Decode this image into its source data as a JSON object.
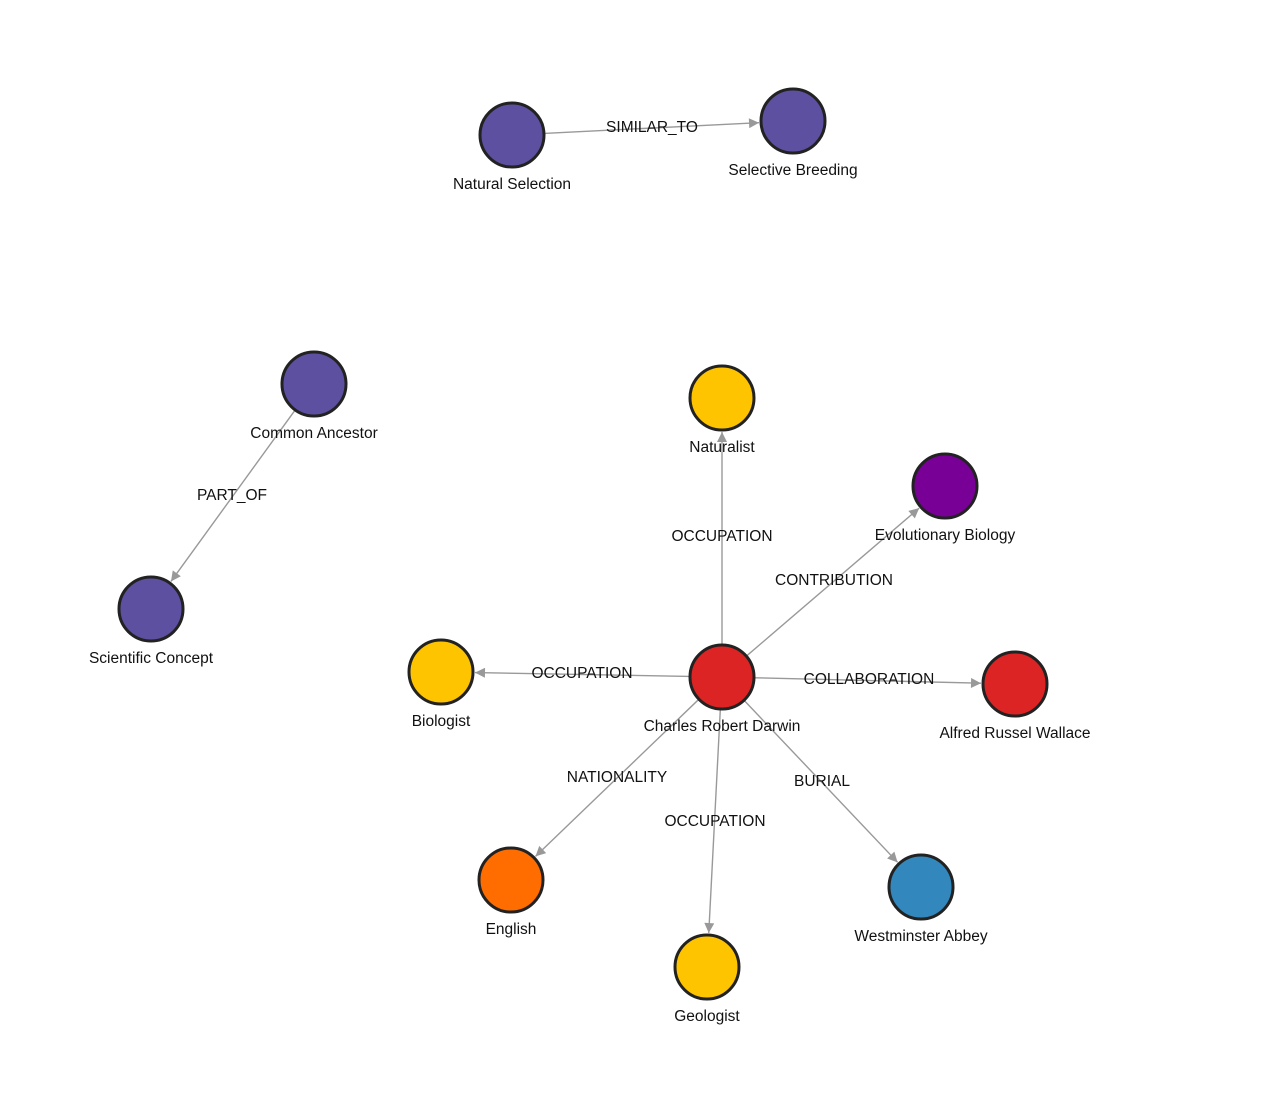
{
  "graph": {
    "nodes": [
      {
        "id": "natural_selection",
        "label": "Natural Selection",
        "color": "#5e50a1"
      },
      {
        "id": "selective_breeding",
        "label": "Selective Breeding",
        "color": "#5e50a1"
      },
      {
        "id": "common_ancestor",
        "label": "Common Ancestor",
        "color": "#5e50a1"
      },
      {
        "id": "scientific_concept",
        "label": "Scientific Concept",
        "color": "#5e50a1"
      },
      {
        "id": "naturalist",
        "label": "Naturalist",
        "color": "#ffc400"
      },
      {
        "id": "evolutionary_biology",
        "label": "Evolutionary Biology",
        "color": "#780096"
      },
      {
        "id": "biologist",
        "label": "Biologist",
        "color": "#ffc400"
      },
      {
        "id": "darwin",
        "label": "Charles Robert Darwin",
        "color": "#dc2424"
      },
      {
        "id": "wallace",
        "label": "Alfred Russel Wallace",
        "color": "#dc2424"
      },
      {
        "id": "english",
        "label": "English",
        "color": "#ff6d00"
      },
      {
        "id": "geologist",
        "label": "Geologist",
        "color": "#ffc400"
      },
      {
        "id": "westminster",
        "label": "Westminster Abbey",
        "color": "#3288bd"
      }
    ],
    "edges": [
      {
        "source": "natural_selection",
        "target": "selective_breeding",
        "label": "SIMILAR_TO"
      },
      {
        "source": "common_ancestor",
        "target": "scientific_concept",
        "label": "PART_OF"
      },
      {
        "source": "darwin",
        "target": "naturalist",
        "label": "OCCUPATION"
      },
      {
        "source": "darwin",
        "target": "evolutionary_biology",
        "label": "CONTRIBUTION"
      },
      {
        "source": "darwin",
        "target": "biologist",
        "label": "OCCUPATION"
      },
      {
        "source": "darwin",
        "target": "wallace",
        "label": "COLLABORATION"
      },
      {
        "source": "darwin",
        "target": "english",
        "label": "NATIONALITY"
      },
      {
        "source": "darwin",
        "target": "geologist",
        "label": "OCCUPATION"
      },
      {
        "source": "darwin",
        "target": "westminster",
        "label": "BURIAL"
      }
    ],
    "edge_color": "#999999",
    "node_stroke": "#222222"
  }
}
